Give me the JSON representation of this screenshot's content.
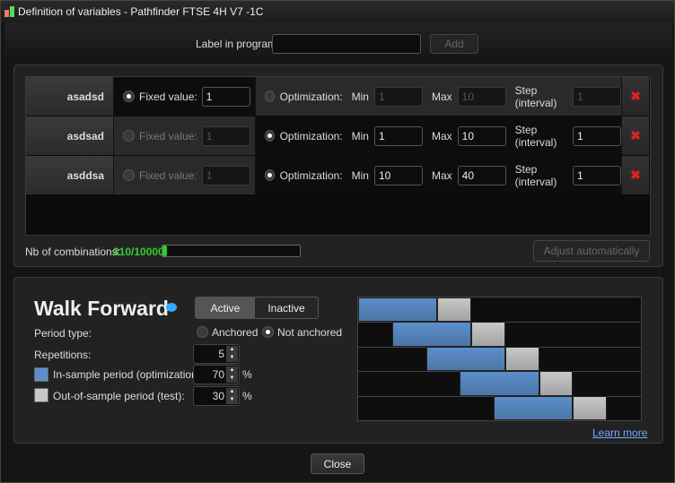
{
  "window": {
    "title": "Definition of variables - Pathfinder FTSE 4H V7 -1C"
  },
  "header": {
    "label_in_program": "Label in program",
    "label_value": "",
    "add_label": "Add"
  },
  "variables": [
    {
      "name": "asadsd",
      "mode": "fixed",
      "fixed_label": "Fixed value:",
      "fixed_value": "1",
      "opt_label": "Optimization:",
      "min_label": "Min",
      "min": "1",
      "max_label": "Max",
      "max": "10",
      "step_label": "Step (interval)",
      "step": "1"
    },
    {
      "name": "asdsad",
      "mode": "optimization",
      "fixed_label": "Fixed value:",
      "fixed_value": "1",
      "opt_label": "Optimization:",
      "min_label": "Min",
      "min": "1",
      "max_label": "Max",
      "max": "10",
      "step_label": "Step (interval)",
      "step": "1"
    },
    {
      "name": "asddsa",
      "mode": "optimization",
      "fixed_label": "Fixed value:",
      "fixed_value": "1",
      "opt_label": "Optimization:",
      "min_label": "Min",
      "min": "10",
      "max_label": "Max",
      "max": "40",
      "step_label": "Step (interval)",
      "step": "1"
    }
  ],
  "combinations": {
    "label": "Nb of combinations:",
    "value": "310/10000",
    "progress": 0.031,
    "adjust_label": "Adjust automatically"
  },
  "walk_forward": {
    "title": "Walk Forward",
    "active_label": "Active",
    "inactive_label": "Inactive",
    "state": "active",
    "period_type_label": "Period type:",
    "anchored_label": "Anchored",
    "not_anchored_label": "Not anchored",
    "period_type": "not anchored",
    "repetitions_label": "Repetitions:",
    "repetitions": "5",
    "in_sample_label": "In-sample period (optimization)",
    "in_sample": "70",
    "out_sample_label": "Out-of-sample period (test):",
    "out_sample": "30",
    "pct": "%",
    "learn_more": "Learn more",
    "colors": {
      "in_sample": "#5b8fcb",
      "out_sample": "#c8c8c8"
    }
  },
  "footer": {
    "close_label": "Close"
  }
}
